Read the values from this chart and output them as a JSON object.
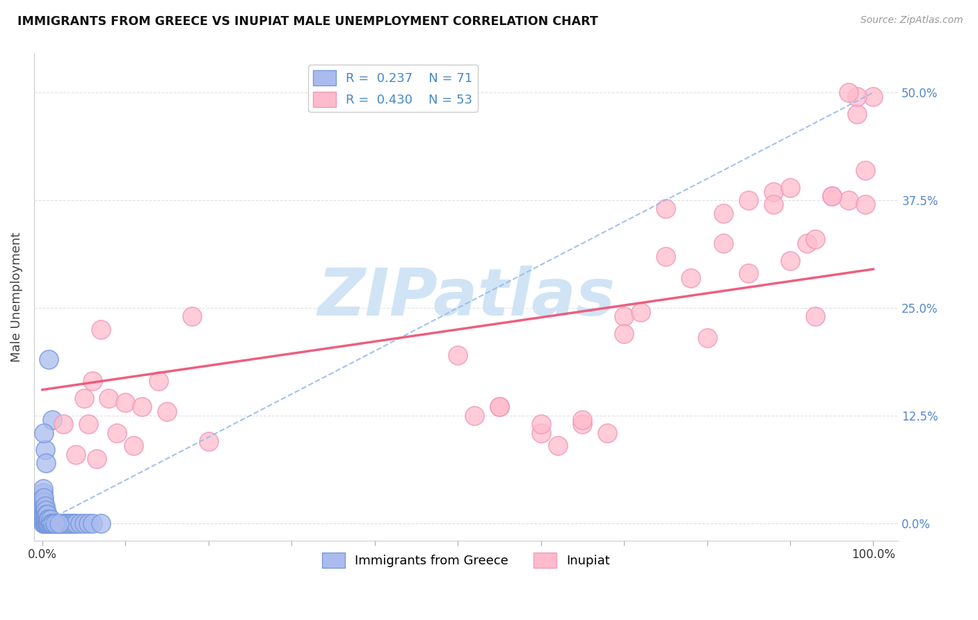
{
  "title": "IMMIGRANTS FROM GREECE VS INUPIAT MALE UNEMPLOYMENT CORRELATION CHART",
  "source": "Source: ZipAtlas.com",
  "ylabel": "Male Unemployment",
  "legend_label1": "Immigrants from Greece",
  "legend_label2": "Inupiat",
  "R1": 0.237,
  "N1": 71,
  "R2": 0.43,
  "N2": 53,
  "color1_edge": "#7799dd",
  "color1_face": "#aabbee",
  "color2_edge": "#ee99bb",
  "color2_face": "#ffbbcc",
  "trendline1_color": "#99bbee",
  "trendline2_color": "#ee5577",
  "watermark": "ZIPatlas",
  "watermark_color": "#d0e4f5",
  "xlim": [
    -0.01,
    1.03
  ],
  "ylim": [
    -0.02,
    0.545
  ],
  "ytick_color": "#5588cc",
  "grid_color": "#e0e0e0",
  "blue_trendline_start_y": 0.0,
  "blue_trendline_end_y": 0.5,
  "pink_trendline_start_y": 0.155,
  "pink_trendline_end_y": 0.295,
  "blue_x": [
    0.001,
    0.001,
    0.001,
    0.001,
    0.001,
    0.001,
    0.001,
    0.001,
    0.001,
    0.001,
    0.002,
    0.002,
    0.002,
    0.002,
    0.002,
    0.002,
    0.002,
    0.002,
    0.002,
    0.002,
    0.003,
    0.003,
    0.003,
    0.003,
    0.003,
    0.003,
    0.004,
    0.004,
    0.004,
    0.004,
    0.005,
    0.005,
    0.005,
    0.005,
    0.006,
    0.006,
    0.006,
    0.007,
    0.007,
    0.008,
    0.008,
    0.009,
    0.01,
    0.01,
    0.011,
    0.012,
    0.013,
    0.015,
    0.016,
    0.018,
    0.02,
    0.022,
    0.025,
    0.028,
    0.03,
    0.032,
    0.035,
    0.038,
    0.04,
    0.045,
    0.05,
    0.055,
    0.06,
    0.07,
    0.008,
    0.012,
    0.003,
    0.002,
    0.004,
    0.015,
    0.02
  ],
  "blue_y": [
    0.0,
    0.005,
    0.01,
    0.015,
    0.02,
    0.025,
    0.03,
    0.035,
    0.04,
    0.005,
    0.0,
    0.005,
    0.01,
    0.015,
    0.02,
    0.025,
    0.03,
    0.0,
    0.005,
    0.01,
    0.0,
    0.005,
    0.01,
    0.015,
    0.02,
    0.0,
    0.0,
    0.005,
    0.01,
    0.015,
    0.0,
    0.005,
    0.01,
    0.0,
    0.0,
    0.005,
    0.01,
    0.0,
    0.005,
    0.0,
    0.005,
    0.0,
    0.0,
    0.005,
    0.0,
    0.0,
    0.0,
    0.0,
    0.0,
    0.0,
    0.0,
    0.0,
    0.0,
    0.0,
    0.0,
    0.0,
    0.0,
    0.0,
    0.0,
    0.0,
    0.0,
    0.0,
    0.0,
    0.0,
    0.19,
    0.12,
    0.085,
    0.105,
    0.07,
    0.0,
    0.0
  ],
  "pink_x": [
    0.025,
    0.04,
    0.05,
    0.055,
    0.06,
    0.065,
    0.07,
    0.08,
    0.09,
    0.1,
    0.11,
    0.12,
    0.14,
    0.15,
    0.18,
    0.2,
    0.5,
    0.52,
    0.55,
    0.6,
    0.62,
    0.65,
    0.68,
    0.7,
    0.72,
    0.75,
    0.78,
    0.8,
    0.82,
    0.85,
    0.88,
    0.9,
    0.92,
    0.93,
    0.95,
    0.97,
    0.98,
    0.99,
    1.0,
    0.99,
    0.98,
    0.97,
    0.95,
    0.93,
    0.9,
    0.88,
    0.85,
    0.82,
    0.75,
    0.7,
    0.65,
    0.6,
    0.55
  ],
  "pink_y": [
    0.115,
    0.08,
    0.145,
    0.115,
    0.165,
    0.075,
    0.225,
    0.145,
    0.105,
    0.14,
    0.09,
    0.135,
    0.165,
    0.13,
    0.24,
    0.095,
    0.195,
    0.125,
    0.135,
    0.105,
    0.09,
    0.115,
    0.105,
    0.24,
    0.245,
    0.31,
    0.285,
    0.215,
    0.36,
    0.29,
    0.385,
    0.39,
    0.325,
    0.33,
    0.38,
    0.375,
    0.475,
    0.37,
    0.495,
    0.41,
    0.495,
    0.5,
    0.38,
    0.24,
    0.305,
    0.37,
    0.375,
    0.325,
    0.365,
    0.22,
    0.12,
    0.115,
    0.135
  ]
}
